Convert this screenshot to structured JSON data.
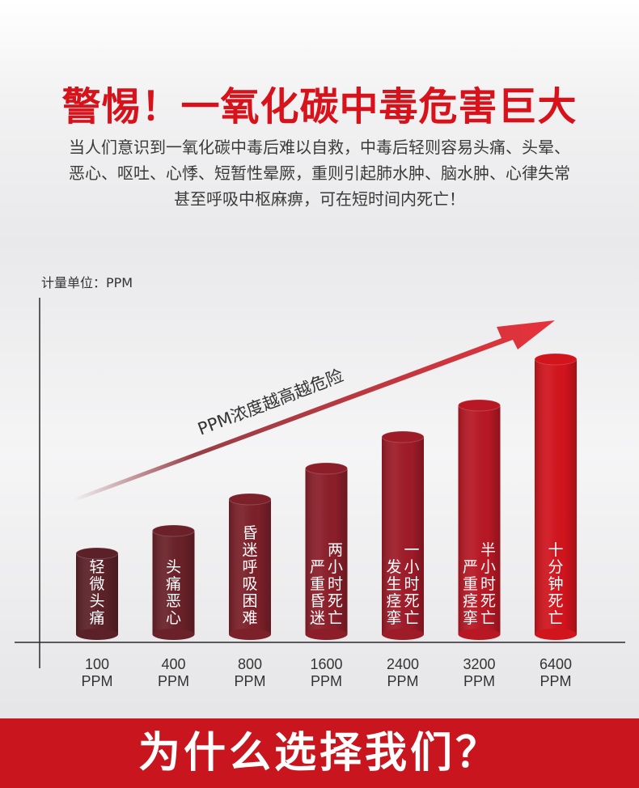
{
  "header": {
    "title": "警惕！一氧化碳中毒危害巨大",
    "desc_lines": [
      "当人们意识到一氧化碳中毒后难以自救，中毒后轻则容易头痛、头晕、",
      "恶心、呕吐、心悸、短暂性晕厥，重则引起肺水肿、脑水肿、心律失常",
      "甚至呼吸中枢麻痹，可在短时间内死亡！"
    ]
  },
  "chart_data": {
    "type": "bar",
    "unit_label": "计量单位：PPM",
    "arrow_label": "PPM浓度越高越危险",
    "categories": [
      "100\nPPM",
      "400\nPPM",
      "800\nPPM",
      "1600\nPPM",
      "2400\nPPM",
      "3200\nPPM",
      "6400\nPPM"
    ],
    "values": [
      100,
      400,
      800,
      1600,
      2400,
      3200,
      6400
    ],
    "bar_labels": [
      [
        "轻微头痛"
      ],
      [
        "头痛恶心"
      ],
      [
        "昏迷呼吸困难"
      ],
      [
        "严重昏迷",
        "两小时死亡"
      ],
      [
        "发生痉挛",
        "一小时死亡"
      ],
      [
        "严重痉挛",
        "半小时死亡"
      ],
      [
        "十分钟死亡"
      ]
    ],
    "colors": [
      "#5c2128",
      "#6a2129",
      "#7c2029",
      "#8b1e29",
      "#9e1b28",
      "#b81824",
      "#d2141d"
    ]
  },
  "footer": {
    "text": "为什么选择我们？"
  }
}
